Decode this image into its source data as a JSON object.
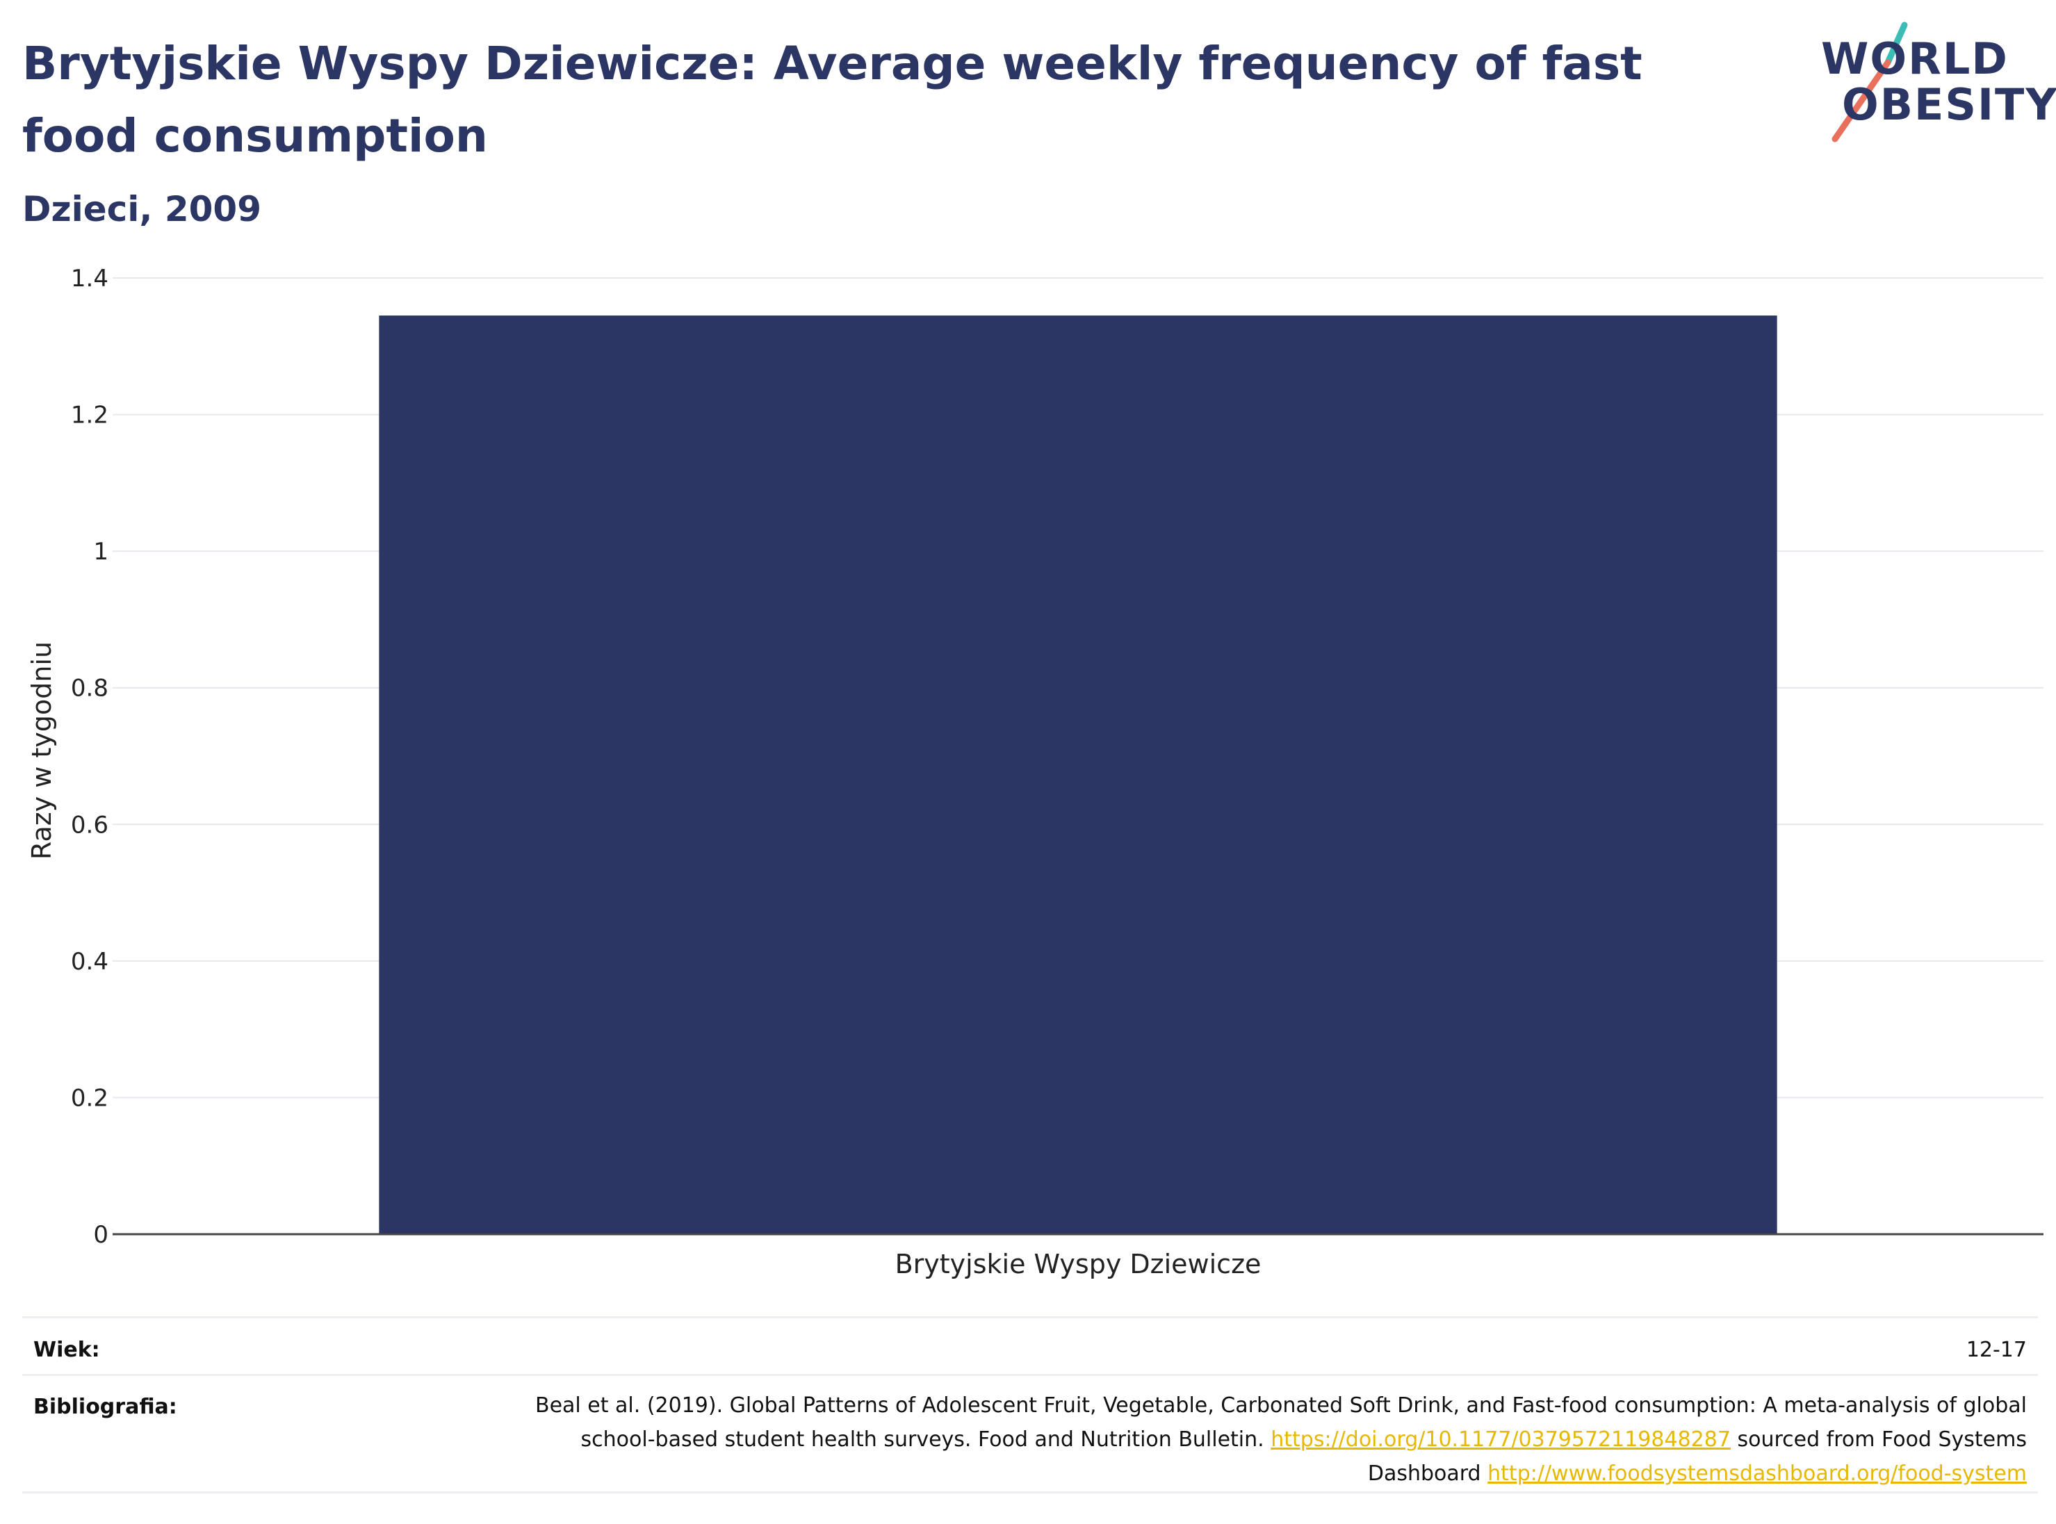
{
  "title": "Brytyjskie Wyspy Dziewicze: Average weekly frequency of fast food consumption",
  "subtitle": "Dzieci, 2009",
  "logo": {
    "line1": "WORLD",
    "line2": "OBESITY"
  },
  "colors": {
    "bar": "#2b3664",
    "title": "#2b3664",
    "link": "#e6b800",
    "grid": "#e6e8ee",
    "logo_teal": "#3cbcb4",
    "logo_coral": "#e8705c"
  },
  "chart_data": {
    "type": "bar",
    "categories": [
      "Brytyjskie Wyspy Dziewicze"
    ],
    "values": [
      1.345
    ],
    "title": "Brytyjskie Wyspy Dziewicze: Average weekly frequency of fast food consumption",
    "subtitle": "Dzieci, 2009",
    "xlabel": "",
    "ylabel": "Razy w tygodniu",
    "ylim": [
      0,
      1.4
    ],
    "yticks": [
      0,
      0.2,
      0.4,
      0.6,
      0.8,
      1,
      1.2,
      1.4
    ],
    "ytick_labels": [
      "0",
      "0.2",
      "0.4",
      "0.6",
      "0.8",
      "1",
      "1.2",
      "1.4"
    ],
    "grid": true,
    "legend": "none"
  },
  "footer": {
    "age_label": "Wiek:",
    "age_value": "12-17",
    "bib_label": "Bibliografia:",
    "bib_text_1": "Beal et al. (2019). Global Patterns of Adolescent Fruit, Vegetable, Carbonated Soft Drink, and Fast-food consumption: A meta-analysis of global school-based student health surveys. Food and Nutrition Bulletin.",
    "bib_link_1": "https://doi.org/10.1177/0379572119848287",
    "bib_text_2": "sourced from Food Systems Dashboard",
    "bib_link_2": "http://www.foodsystemsdashboard.org/food-system"
  }
}
